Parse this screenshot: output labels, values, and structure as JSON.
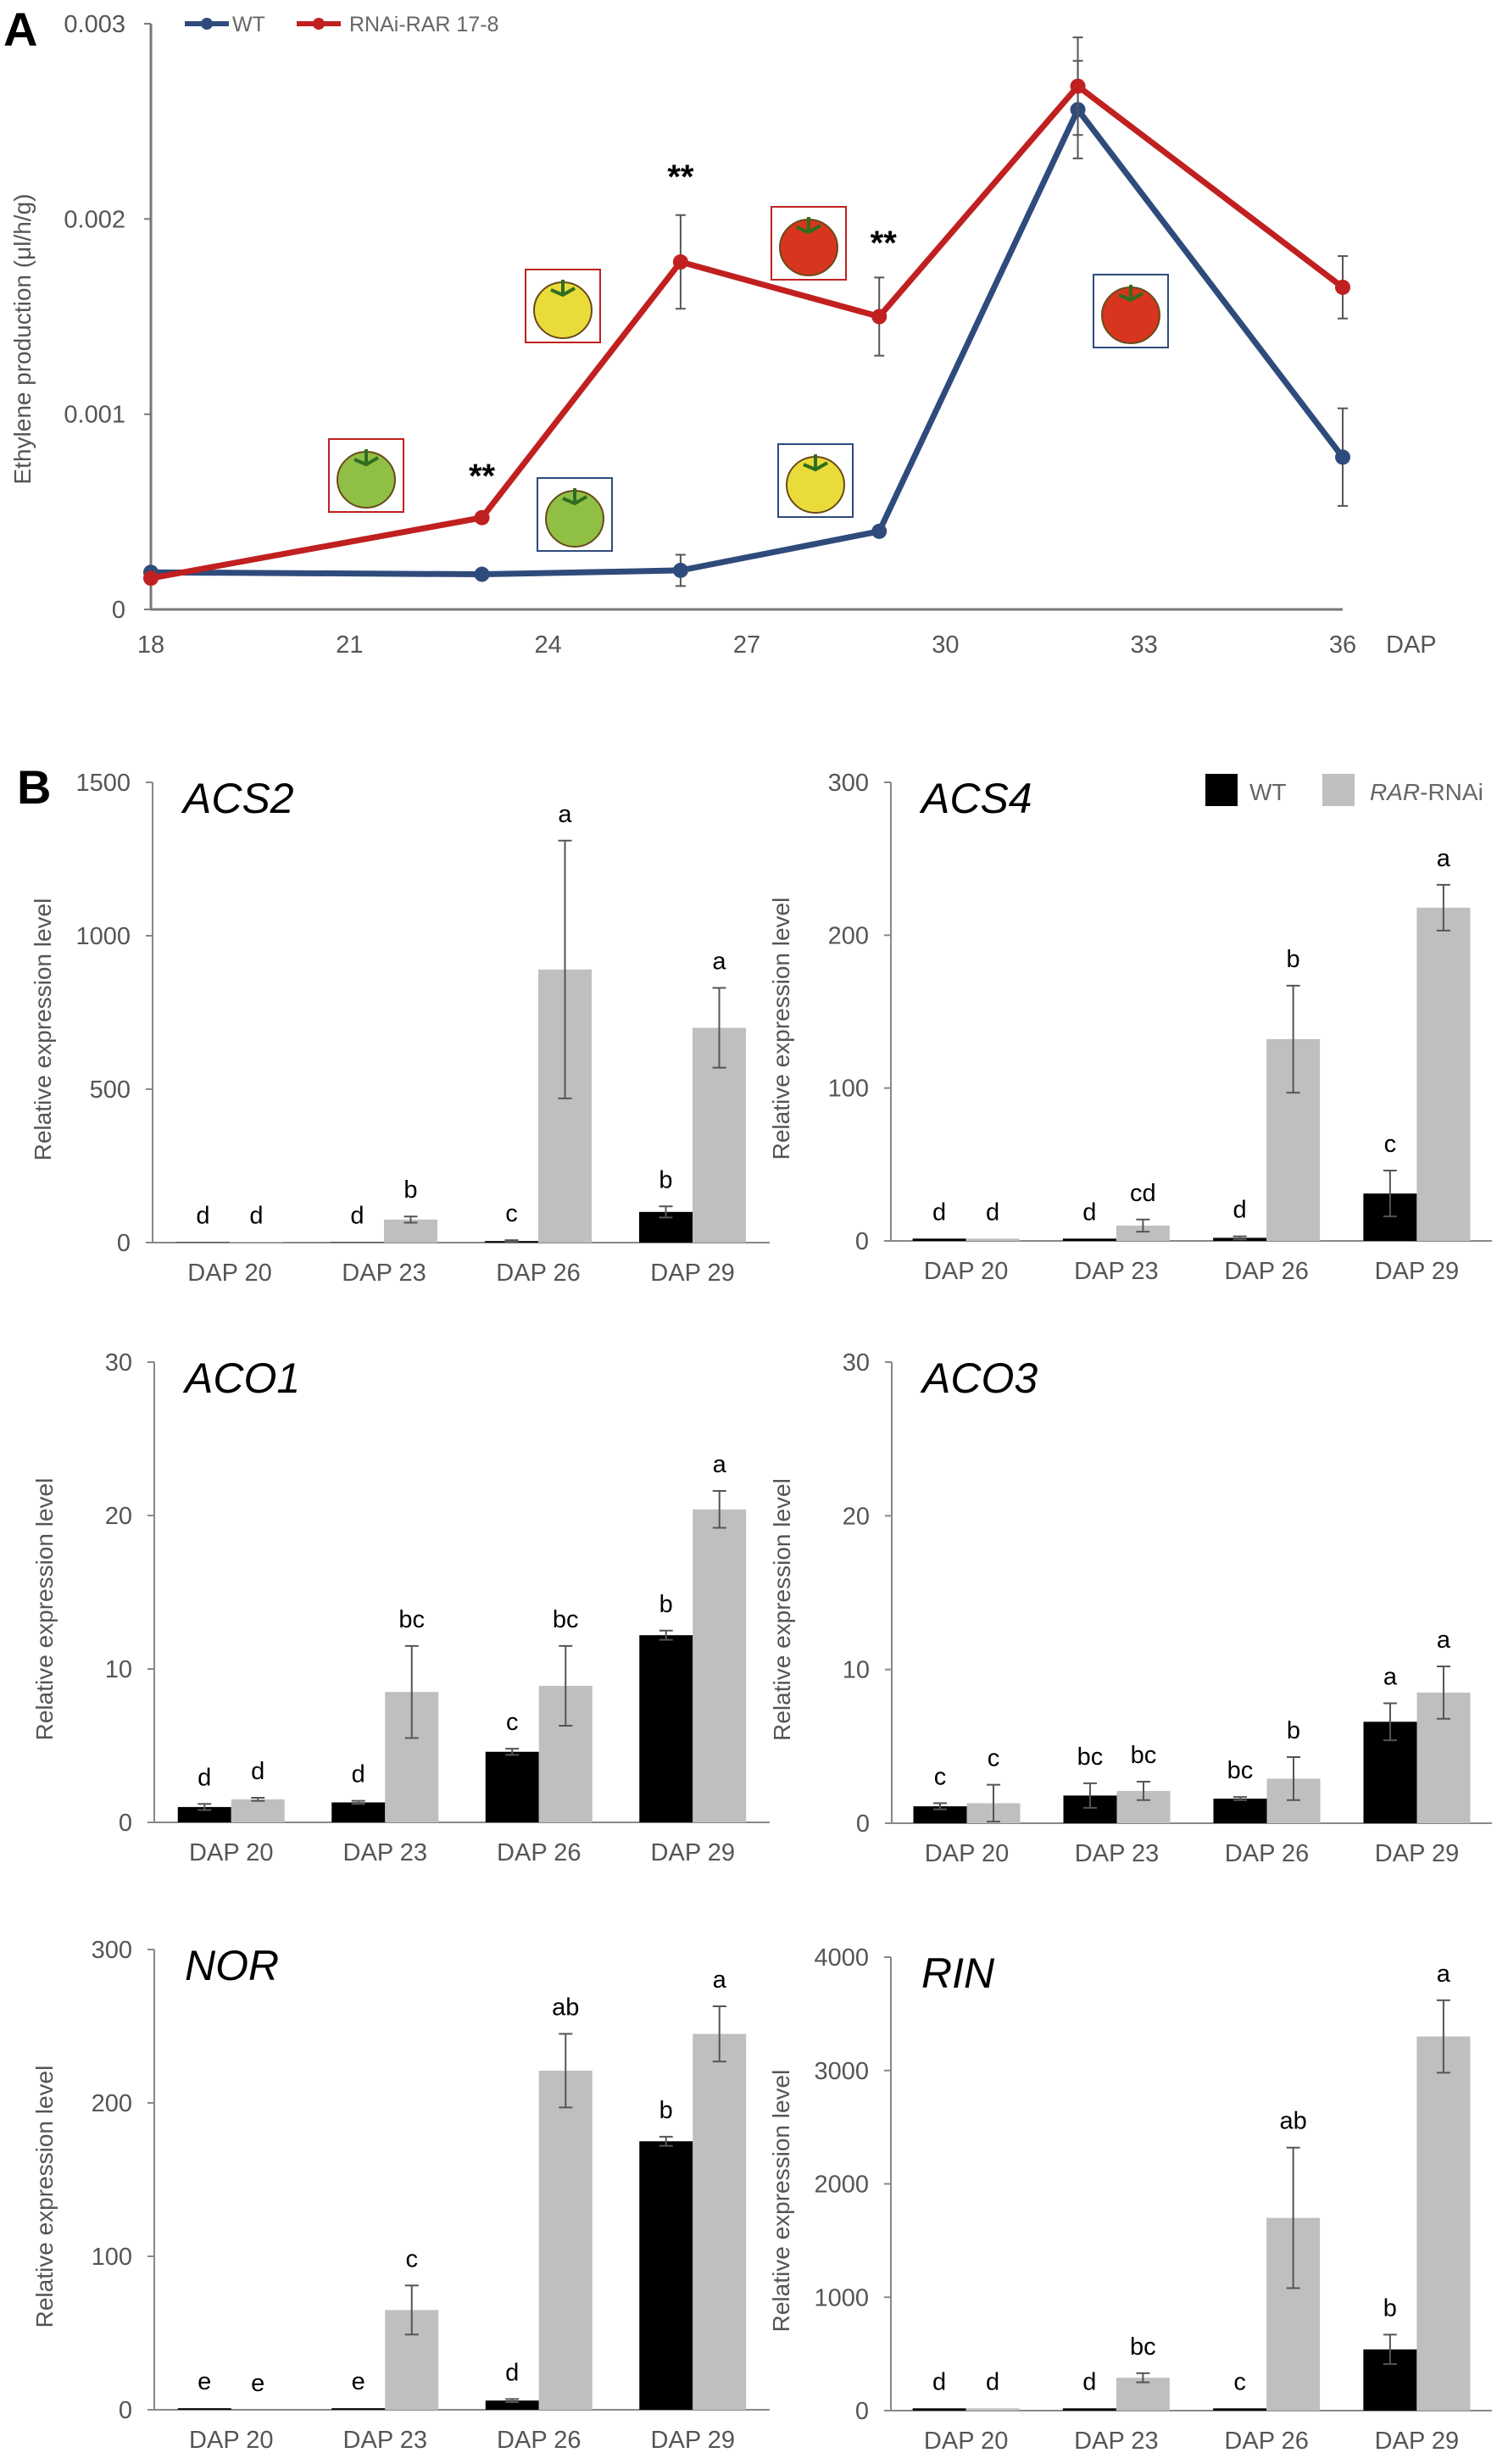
{
  "panel_labels": [
    "A",
    "B"
  ],
  "colors": {
    "wt_line": "#2f4b7c",
    "rar_line": "#c0201f",
    "wt_bar": "#000000",
    "rar_bar": "#bfbfbf"
  },
  "chart_data": [
    {
      "type": "line",
      "panel": "A",
      "ylabel": "Ethylene production (μl/h/g)",
      "xlabel": "DAP",
      "xlim": [
        18,
        36
      ],
      "xticks": [
        "18",
        "21",
        "24",
        "27",
        "30",
        "33",
        "36"
      ],
      "ylim": [
        0,
        0.003
      ],
      "yticks": [
        "0",
        "0.001",
        "0.002",
        "0.003"
      ],
      "legend": {
        "placement": "top-left",
        "entries": [
          "WT",
          "RNAi-RAR 17-8"
        ]
      },
      "x": [
        18,
        23,
        26,
        29,
        32,
        36
      ],
      "series": [
        {
          "name": "WT",
          "values": [
            0.00019,
            0.00018,
            0.0002,
            0.0004,
            0.00256,
            0.00078
          ],
          "errors": [
            0,
            0,
            8e-05,
            0,
            0.00025,
            0.00025
          ]
        },
        {
          "name": "RNAi-RAR 17-8",
          "values": [
            0.00016,
            0.00047,
            0.00178,
            0.0015,
            0.00268,
            0.00165
          ],
          "errors": [
            0,
            0,
            0.00024,
            0.0002,
            0.00025,
            0.00016
          ]
        }
      ],
      "annotations": [
        {
          "text": "**",
          "x": 23
        },
        {
          "text": "**",
          "x": 26
        },
        {
          "text": "**",
          "x": 29
        }
      ],
      "fruit_icons": [
        {
          "line": "RNAi-RAR 17-8",
          "stage": "green"
        },
        {
          "line": "RNAi-RAR 17-8",
          "stage": "yellow"
        },
        {
          "line": "RNAi-RAR 17-8",
          "stage": "red"
        },
        {
          "line": "WT",
          "stage": "green"
        },
        {
          "line": "WT",
          "stage": "yellow"
        },
        {
          "line": "WT",
          "stage": "red"
        }
      ]
    },
    {
      "type": "bar",
      "panel": "B",
      "title": "ACS2",
      "ylabel": "Relative expression level",
      "categories": [
        "DAP 20",
        "DAP 23",
        "DAP 26",
        "DAP 29"
      ],
      "ylim": [
        0,
        1500
      ],
      "yticks": [
        "0",
        "500",
        "1000",
        "1500"
      ],
      "series": [
        {
          "name": "WT",
          "values": [
            1,
            1,
            5,
            100
          ],
          "errors": [
            0,
            0,
            3,
            18
          ],
          "letters": [
            "d",
            "d",
            "c",
            "b"
          ]
        },
        {
          "name": "RAR-RNAi",
          "values": [
            2,
            75,
            890,
            700
          ],
          "errors": [
            0,
            10,
            420,
            130
          ],
          "letters": [
            "d",
            "b",
            "a",
            "a"
          ]
        }
      ]
    },
    {
      "type": "bar",
      "panel": "B",
      "title": "ACS4",
      "ylabel": "Relative expression level",
      "categories": [
        "DAP 20",
        "DAP 23",
        "DAP 26",
        "DAP 29"
      ],
      "ylim": [
        0,
        300
      ],
      "yticks": [
        "0",
        "100",
        "200",
        "300"
      ],
      "legend": {
        "placement": "top-right",
        "entries": [
          "WT",
          "RAR",
          "-RNAi"
        ]
      },
      "series": [
        {
          "name": "WT",
          "values": [
            1.5,
            1.5,
            2,
            31
          ],
          "errors": [
            0,
            0,
            1,
            15
          ],
          "letters": [
            "d",
            "d",
            "d",
            "c"
          ]
        },
        {
          "name": "RAR-RNAi",
          "values": [
            1.5,
            10,
            132,
            218
          ],
          "errors": [
            0,
            4,
            35,
            15
          ],
          "letters": [
            "d",
            "cd",
            "b",
            "a"
          ]
        }
      ]
    },
    {
      "type": "bar",
      "panel": "B",
      "title": "ACO1",
      "ylabel": "Relative expression level",
      "categories": [
        "DAP 20",
        "DAP 23",
        "DAP 26",
        "DAP 29"
      ],
      "ylim": [
        0,
        30
      ],
      "yticks": [
        "0",
        "10",
        "20",
        "30"
      ],
      "series": [
        {
          "name": "WT",
          "values": [
            1,
            1.3,
            4.6,
            12.2
          ],
          "errors": [
            0.2,
            0.1,
            0.2,
            0.3
          ],
          "letters": [
            "d",
            "d",
            "c",
            "b"
          ]
        },
        {
          "name": "RAR-RNAi",
          "values": [
            1.5,
            8.5,
            8.9,
            20.4
          ],
          "errors": [
            0.1,
            3,
            2.6,
            1.2
          ],
          "letters": [
            "d",
            "bc",
            "bc",
            "a"
          ]
        }
      ]
    },
    {
      "type": "bar",
      "panel": "B",
      "title": "ACO3",
      "ylabel": "Relative expression level",
      "categories": [
        "DAP 20",
        "DAP 23",
        "DAP 26",
        "DAP 29"
      ],
      "ylim": [
        0,
        30
      ],
      "yticks": [
        "0",
        "10",
        "20",
        "30"
      ],
      "series": [
        {
          "name": "WT",
          "values": [
            1.1,
            1.8,
            1.6,
            6.6
          ],
          "errors": [
            0.2,
            0.8,
            0.1,
            1.2
          ],
          "letters": [
            "c",
            "bc",
            "bc",
            "a"
          ]
        },
        {
          "name": "RAR-RNAi",
          "values": [
            1.3,
            2.1,
            2.9,
            8.5
          ],
          "errors": [
            1.2,
            0.6,
            1.4,
            1.7
          ],
          "letters": [
            "c",
            "bc",
            "b",
            "a"
          ]
        }
      ]
    },
    {
      "type": "bar",
      "panel": "B",
      "title": "NOR",
      "ylabel": "Relative expression level",
      "categories": [
        "DAP 20",
        "DAP 23",
        "DAP 26",
        "DAP 29"
      ],
      "ylim": [
        0,
        300
      ],
      "yticks": [
        "0",
        "100",
        "200",
        "300"
      ],
      "series": [
        {
          "name": "WT",
          "values": [
            1,
            1,
            6,
            175
          ],
          "errors": [
            0,
            0,
            1,
            3
          ],
          "letters": [
            "e",
            "e",
            "d",
            "b"
          ]
        },
        {
          "name": "RAR-RNAi",
          "values": [
            0,
            65,
            221,
            245
          ],
          "errors": [
            0,
            16,
            24,
            18
          ],
          "letters": [
            "e",
            "c",
            "ab",
            "a"
          ]
        }
      ]
    },
    {
      "type": "bar",
      "panel": "B",
      "title": "RIN",
      "ylabel": "Relative expression level",
      "categories": [
        "DAP 20",
        "DAP 23",
        "DAP 26",
        "DAP 29"
      ],
      "ylim": [
        0,
        4000
      ],
      "yticks": [
        "0",
        "1000",
        "2000",
        "3000",
        "4000"
      ],
      "series": [
        {
          "name": "WT",
          "values": [
            20,
            20,
            20,
            540
          ],
          "errors": [
            0,
            0,
            0,
            130
          ],
          "letters": [
            "d",
            "d",
            "c",
            "b"
          ]
        },
        {
          "name": "RAR-RNAi",
          "values": [
            20,
            290,
            1700,
            3300
          ],
          "errors": [
            0,
            40,
            620,
            320
          ],
          "letters": [
            "d",
            "bc",
            "ab",
            "a"
          ]
        }
      ]
    }
  ]
}
